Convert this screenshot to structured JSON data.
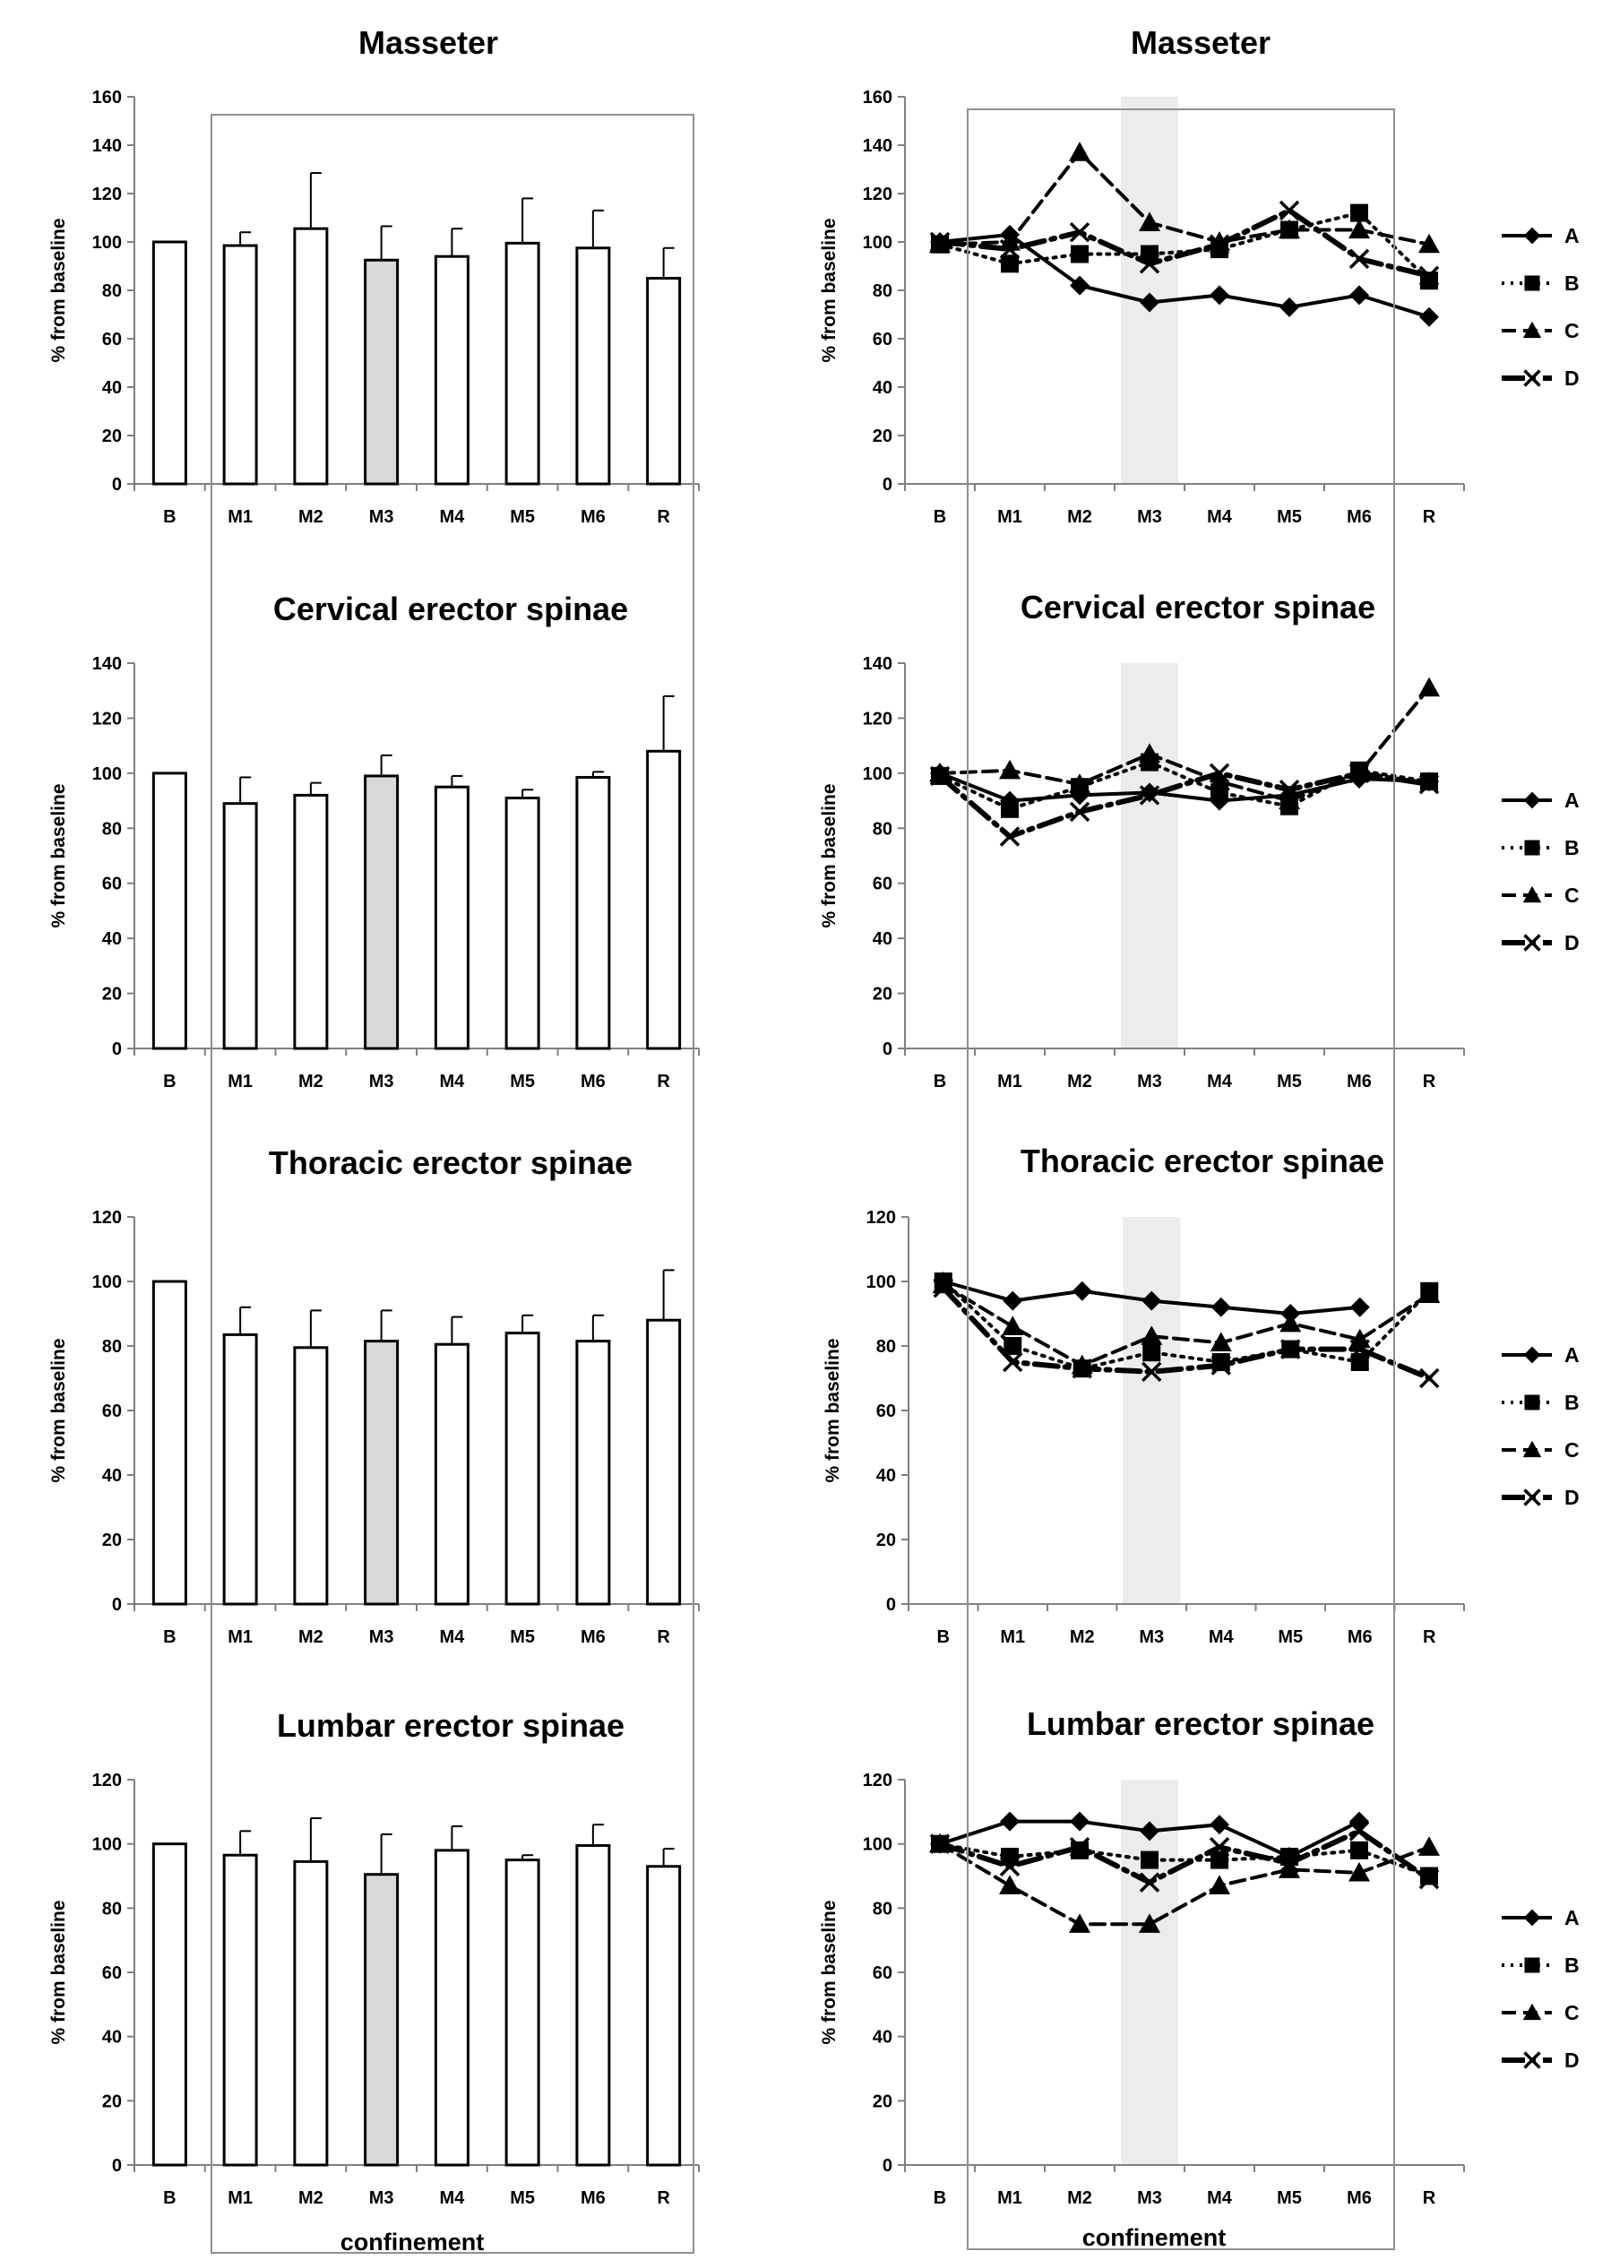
{
  "chart_data": [
    {
      "id": "bar-masseter",
      "type": "bar",
      "title": "Masseter",
      "ylabel": "% from baseline",
      "ylim": [
        0,
        160
      ],
      "yticks": [
        0,
        20,
        40,
        60,
        80,
        100,
        120,
        140,
        160
      ],
      "categories": [
        "B",
        "M1",
        "M2",
        "M3",
        "M4",
        "M5",
        "M6",
        "R"
      ],
      "values": [
        100,
        98.5,
        105.5,
        92.5,
        94,
        99.5,
        97.5,
        85
      ],
      "errors": [
        0,
        5.5,
        23,
        14,
        11.5,
        18.5,
        15.5,
        12.5
      ],
      "highlight": "M3"
    },
    {
      "id": "line-masseter",
      "type": "line",
      "title": "Masseter",
      "ylabel": "% from baseline",
      "ylim": [
        0,
        160
      ],
      "yticks": [
        0,
        20,
        40,
        60,
        80,
        100,
        120,
        140,
        160
      ],
      "categories": [
        "B",
        "M1",
        "M2",
        "M3",
        "M4",
        "M5",
        "M6",
        "R"
      ],
      "highlight": "M3",
      "series": [
        {
          "name": "A",
          "values": [
            100,
            103,
            82,
            75,
            78,
            73,
            78,
            69
          ]
        },
        {
          "name": "B",
          "values": [
            99,
            91,
            95,
            95,
            97,
            105,
            112,
            84
          ]
        },
        {
          "name": "C",
          "values": [
            99,
            100,
            137,
            108,
            100,
            105,
            105,
            99
          ]
        },
        {
          "name": "D",
          "values": [
            100,
            97,
            104,
            91,
            99,
            113,
            93,
            86
          ]
        }
      ]
    },
    {
      "id": "bar-cervical",
      "type": "bar",
      "title": "Cervical erector spinae",
      "ylabel": "% from baseline",
      "ylim": [
        0,
        140
      ],
      "yticks": [
        0,
        20,
        40,
        60,
        80,
        100,
        120,
        140
      ],
      "categories": [
        "B",
        "M1",
        "M2",
        "M3",
        "M4",
        "M5",
        "M6",
        "R"
      ],
      "values": [
        100,
        89,
        92,
        99,
        95,
        91,
        98.5,
        108
      ],
      "errors": [
        0,
        9.5,
        4.5,
        7.5,
        4,
        3,
        2,
        20
      ],
      "highlight": "M3"
    },
    {
      "id": "line-cervical",
      "type": "line",
      "title": "Cervical erector spinae",
      "ylabel": "% from baseline",
      "ylim": [
        0,
        140
      ],
      "yticks": [
        0,
        20,
        40,
        60,
        80,
        100,
        120,
        140
      ],
      "categories": [
        "B",
        "M1",
        "M2",
        "M3",
        "M4",
        "M5",
        "M6",
        "R"
      ],
      "highlight": "M3",
      "series": [
        {
          "name": "A",
          "values": [
            100,
            90,
            92,
            93,
            90,
            92,
            98,
            97
          ]
        },
        {
          "name": "B",
          "values": [
            99,
            87,
            95,
            104,
            93,
            88,
            101,
            97
          ]
        },
        {
          "name": "C",
          "values": [
            100,
            101,
            96,
            107,
            97,
            90,
            100,
            131
          ]
        },
        {
          "name": "D",
          "values": [
            99,
            77,
            86,
            92,
            100,
            94,
            100,
            96
          ]
        }
      ]
    },
    {
      "id": "bar-thoracic",
      "type": "bar",
      "title": "Thoracic erector spinae",
      "ylabel": "% from baseline",
      "ylim": [
        0,
        120
      ],
      "yticks": [
        0,
        20,
        40,
        60,
        80,
        100,
        120
      ],
      "categories": [
        "B",
        "M1",
        "M2",
        "M3",
        "M4",
        "M5",
        "M6",
        "R"
      ],
      "values": [
        100,
        83.5,
        79.5,
        81.5,
        80.5,
        84,
        81.5,
        88
      ],
      "errors": [
        0,
        8.5,
        11.5,
        9.5,
        8.5,
        5.5,
        8,
        15.5
      ],
      "highlight": "M3"
    },
    {
      "id": "line-thoracic",
      "type": "line",
      "title": "Thoracic erector spinae",
      "ylabel": "% from baseline",
      "ylim": [
        0,
        120
      ],
      "yticks": [
        0,
        20,
        40,
        60,
        80,
        100,
        120
      ],
      "categories": [
        "B",
        "M1",
        "M2",
        "M3",
        "M4",
        "M5",
        "M6",
        "R"
      ],
      "highlight": "M3",
      "series": [
        {
          "name": "A",
          "values": [
            100,
            94,
            97,
            94,
            92,
            90,
            92,
            null
          ]
        },
        {
          "name": "B",
          "values": [
            100,
            80,
            73,
            78,
            75,
            79,
            75,
            97
          ]
        },
        {
          "name": "C",
          "values": [
            99,
            86,
            74,
            83,
            81,
            87,
            82,
            96
          ]
        },
        {
          "name": "D",
          "values": [
            98,
            75,
            73,
            72,
            74,
            79,
            79,
            70
          ]
        }
      ]
    },
    {
      "id": "bar-lumbar",
      "type": "bar",
      "title": "Lumbar erector spinae",
      "ylabel": "% from baseline",
      "ylim": [
        0,
        120
      ],
      "yticks": [
        0,
        20,
        40,
        60,
        80,
        100,
        120
      ],
      "categories": [
        "B",
        "M1",
        "M2",
        "M3",
        "M4",
        "M5",
        "M6",
        "R"
      ],
      "values": [
        100,
        96.5,
        94.5,
        90.5,
        98,
        95,
        99.5,
        93
      ],
      "errors": [
        0,
        7.5,
        13.5,
        12.5,
        7.5,
        1.5,
        6.5,
        5.5
      ],
      "highlight": "M3"
    },
    {
      "id": "line-lumbar",
      "type": "line",
      "title": "Lumbar erector spinae",
      "ylabel": "% from baseline",
      "ylim": [
        0,
        120
      ],
      "yticks": [
        0,
        20,
        40,
        60,
        80,
        100,
        120
      ],
      "categories": [
        "B",
        "M1",
        "M2",
        "M3",
        "M4",
        "M5",
        "M6",
        "R"
      ],
      "highlight": "M3",
      "series": [
        {
          "name": "A",
          "values": [
            100,
            107,
            107,
            104,
            106,
            96,
            107,
            null
          ]
        },
        {
          "name": "B",
          "values": [
            100,
            96,
            98,
            95,
            95,
            96,
            98,
            90
          ]
        },
        {
          "name": "C",
          "values": [
            100,
            87,
            75,
            75,
            87,
            92,
            91,
            99
          ]
        },
        {
          "name": "D",
          "values": [
            100,
            93,
            99,
            88,
            99,
            94,
            104,
            89
          ]
        }
      ]
    }
  ],
  "legend": {
    "entries": [
      "A",
      "B",
      "C",
      "D"
    ]
  },
  "footer": {
    "left_label": "confinement",
    "right_label": "confinement"
  }
}
